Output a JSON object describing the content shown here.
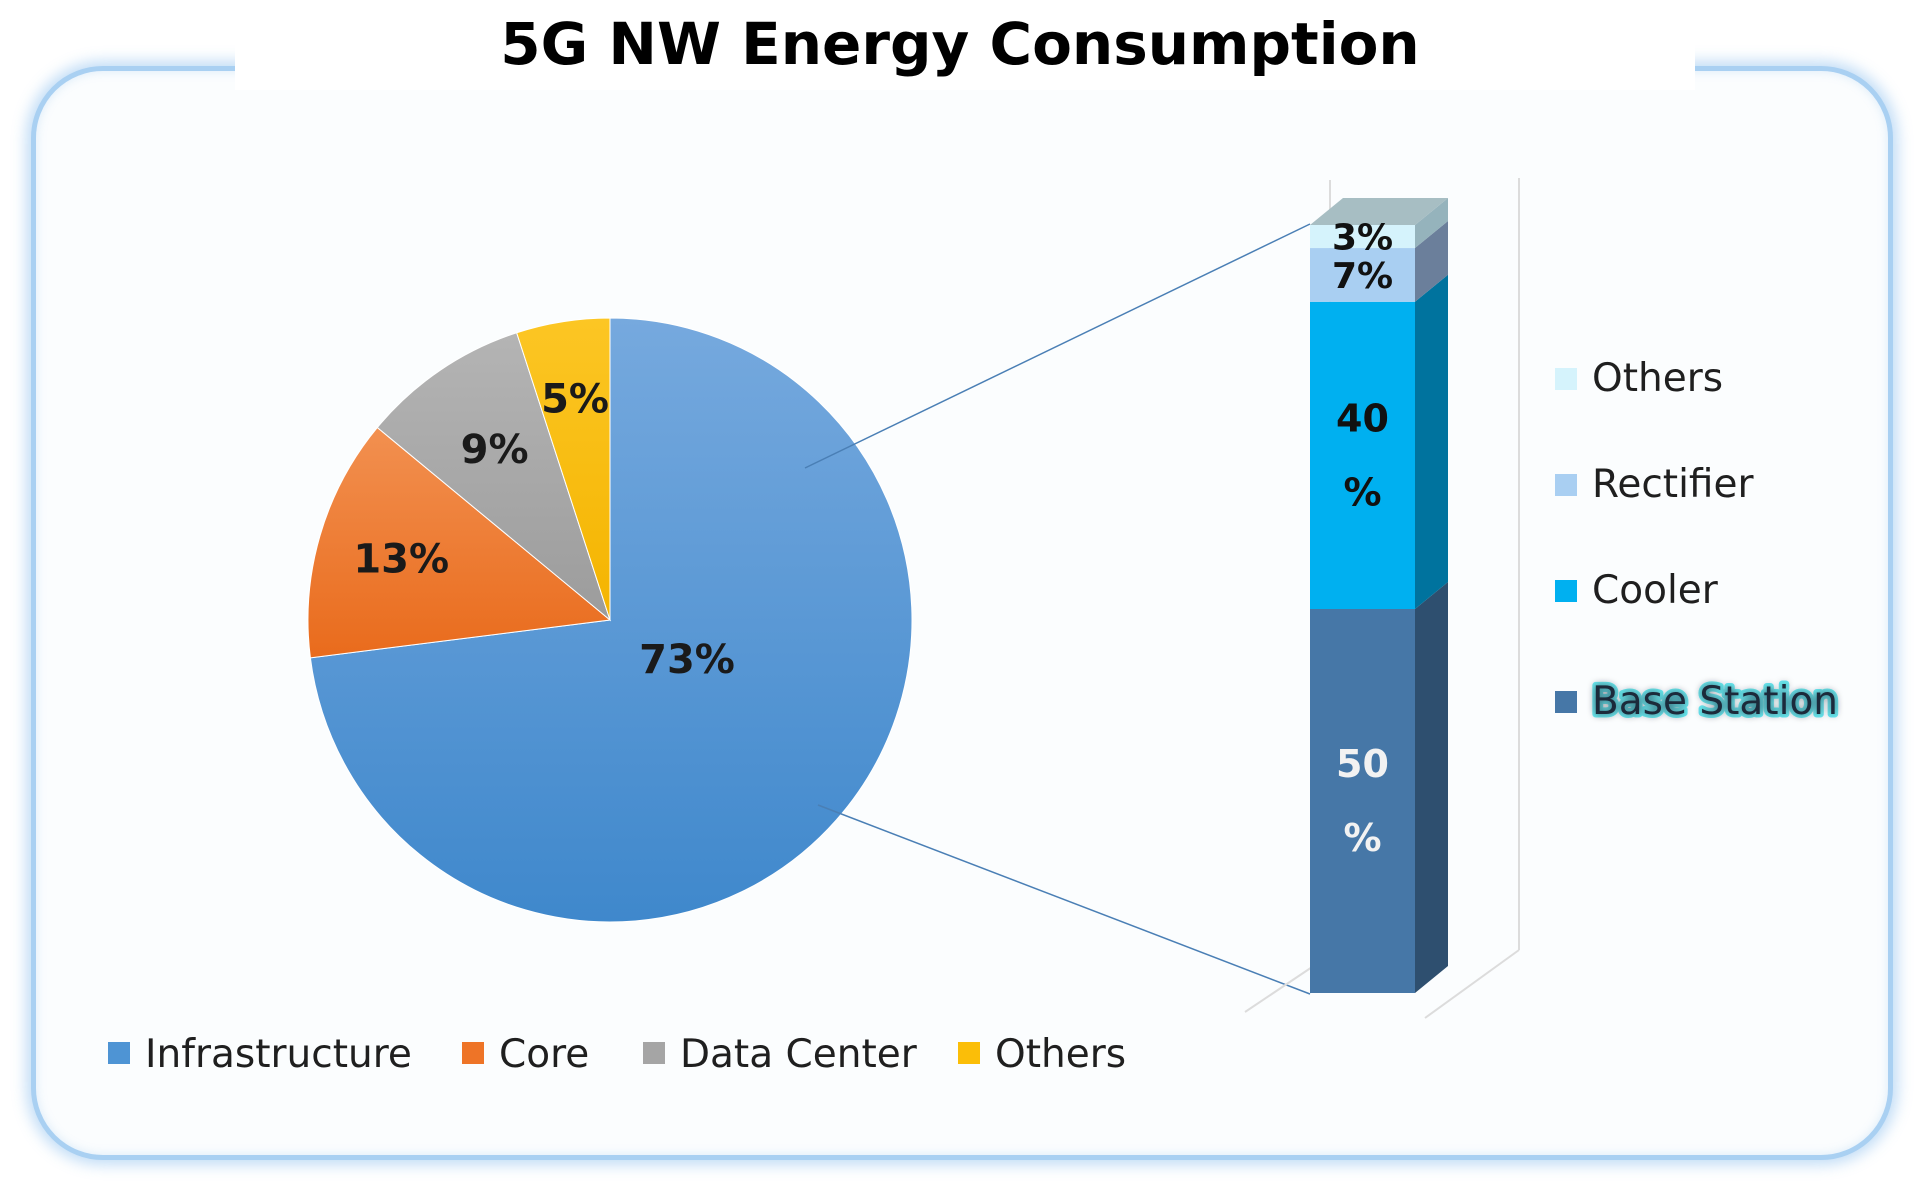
{
  "chart_data": [
    {
      "type": "pie",
      "title": "5G NW Energy Consumption",
      "categories": [
        "Infrastructure",
        "Core",
        "Data Center",
        "Others"
      ],
      "values": [
        73,
        13,
        9,
        5
      ],
      "labels": [
        "73%",
        "13%",
        "9%",
        "5%"
      ],
      "colors": [
        "#4e94d4",
        "#ee7427",
        "#a5a5a5",
        "#fbbe08"
      ],
      "legend_position": "bottom"
    },
    {
      "type": "bar",
      "stacked": true,
      "detail_of": "Infrastructure",
      "categories": [
        "Base Station",
        "Cooler",
        "Rectifier",
        "Others"
      ],
      "values": [
        50,
        40,
        7,
        3
      ],
      "labels": [
        "50\n%",
        "40\n%",
        "7%",
        "3%"
      ],
      "colors": [
        "#4677a7",
        "#00b0f0",
        "#a9cff2",
        "#d5f3fc"
      ],
      "side_colors": [
        "#2e4f6f",
        "#00739e",
        "#6b7f9b",
        "#95b3bc"
      ],
      "legend_position": "right"
    }
  ]
}
